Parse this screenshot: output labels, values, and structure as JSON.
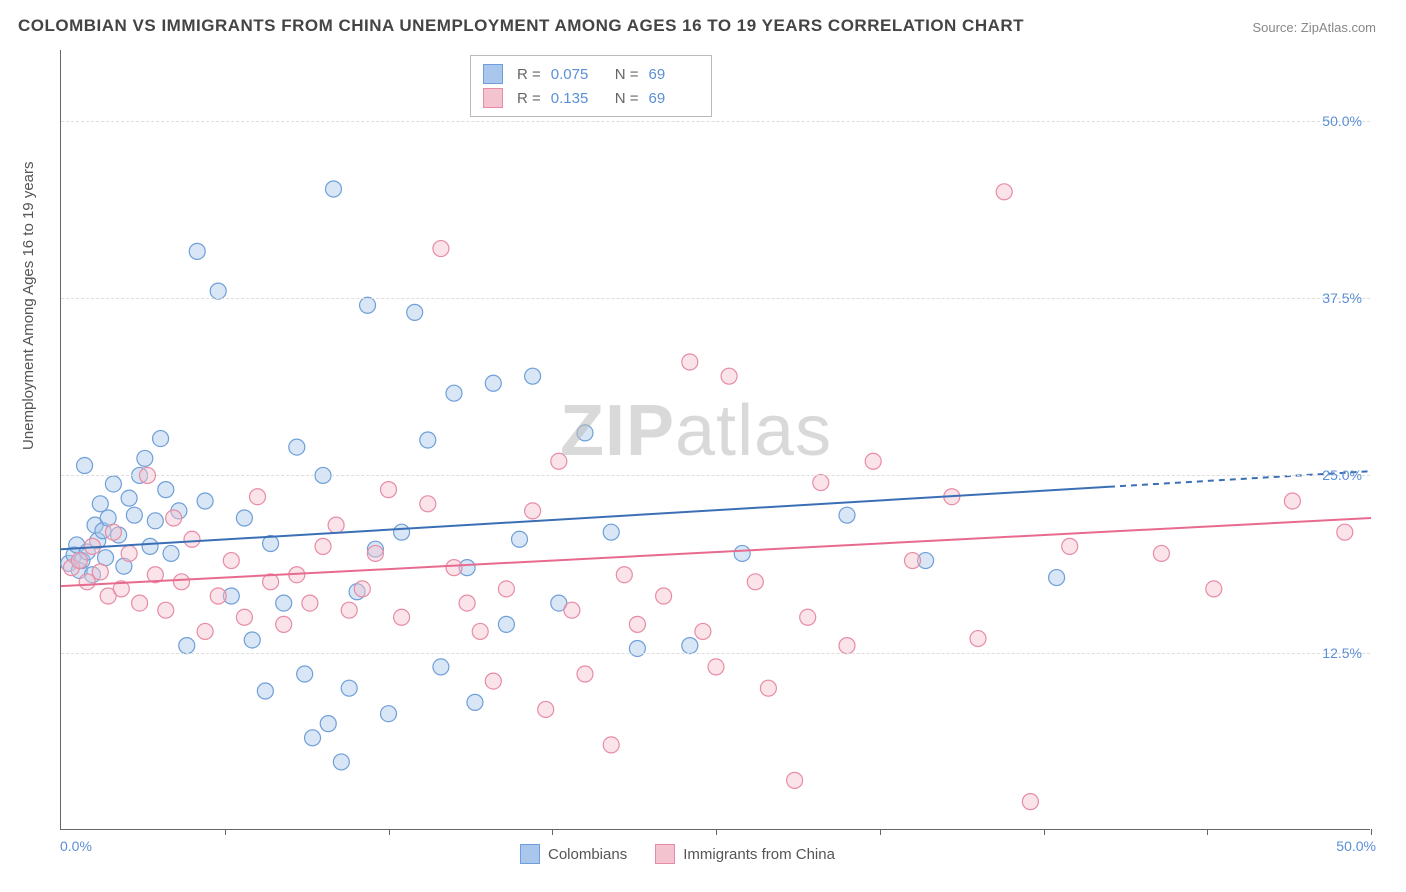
{
  "title": "COLOMBIAN VS IMMIGRANTS FROM CHINA UNEMPLOYMENT AMONG AGES 16 TO 19 YEARS CORRELATION CHART",
  "source": "Source: ZipAtlas.com",
  "ylabel": "Unemployment Among Ages 16 to 19 years",
  "watermark_a": "ZIP",
  "watermark_b": "atlas",
  "chart": {
    "type": "scatter",
    "xlim": [
      0,
      50
    ],
    "ylim": [
      0,
      55
    ],
    "ytick_positions": [
      12.5,
      25.0,
      37.5,
      50.0
    ],
    "ytick_labels": [
      "12.5%",
      "25.0%",
      "37.5%",
      "50.0%"
    ],
    "xtick_positions": [
      6.25,
      12.5,
      18.75,
      25.0,
      31.25,
      37.5,
      43.75,
      50.0
    ],
    "x_origin_label": "0.0%",
    "x_max_label": "50.0%",
    "background_color": "#ffffff",
    "grid_color": "#dddddd",
    "marker_radius": 8,
    "series": [
      {
        "name": "Colombians",
        "color_fill": "#a9c7ec",
        "color_stroke": "#6f9fd8",
        "R": "0.075",
        "N": "69",
        "trend": {
          "x1": 0,
          "y1": 19.8,
          "x2": 40,
          "y2": 24.2,
          "x2_ext": 50,
          "y2_ext": 25.3,
          "color": "#3b6fb5",
          "width": 2
        },
        "points": [
          [
            0.3,
            18.8
          ],
          [
            0.5,
            19.4
          ],
          [
            0.6,
            20.1
          ],
          [
            0.7,
            18.3
          ],
          [
            0.8,
            19.0
          ],
          [
            0.9,
            25.7
          ],
          [
            1.0,
            19.6
          ],
          [
            1.2,
            18.0
          ],
          [
            1.3,
            21.5
          ],
          [
            1.4,
            20.4
          ],
          [
            1.5,
            23.0
          ],
          [
            1.6,
            21.1
          ],
          [
            1.7,
            19.2
          ],
          [
            1.8,
            22.0
          ],
          [
            2.0,
            24.4
          ],
          [
            2.2,
            20.8
          ],
          [
            2.4,
            18.6
          ],
          [
            2.6,
            23.4
          ],
          [
            2.8,
            22.2
          ],
          [
            3.0,
            25.0
          ],
          [
            3.2,
            26.2
          ],
          [
            3.4,
            20.0
          ],
          [
            3.6,
            21.8
          ],
          [
            3.8,
            27.6
          ],
          [
            4.0,
            24.0
          ],
          [
            4.2,
            19.5
          ],
          [
            4.5,
            22.5
          ],
          [
            4.8,
            13.0
          ],
          [
            5.2,
            40.8
          ],
          [
            5.5,
            23.2
          ],
          [
            6.0,
            38.0
          ],
          [
            6.5,
            16.5
          ],
          [
            7.0,
            22.0
          ],
          [
            7.3,
            13.4
          ],
          [
            7.8,
            9.8
          ],
          [
            8.0,
            20.2
          ],
          [
            8.5,
            16.0
          ],
          [
            9.0,
            27.0
          ],
          [
            9.3,
            11.0
          ],
          [
            9.6,
            6.5
          ],
          [
            10.0,
            25.0
          ],
          [
            10.2,
            7.5
          ],
          [
            10.4,
            45.2
          ],
          [
            10.7,
            4.8
          ],
          [
            11.0,
            10.0
          ],
          [
            11.3,
            16.8
          ],
          [
            11.7,
            37.0
          ],
          [
            12.0,
            19.8
          ],
          [
            12.5,
            8.2
          ],
          [
            13.0,
            21.0
          ],
          [
            13.5,
            36.5
          ],
          [
            14.0,
            27.5
          ],
          [
            14.5,
            11.5
          ],
          [
            15.0,
            30.8
          ],
          [
            15.5,
            18.5
          ],
          [
            15.8,
            9.0
          ],
          [
            16.5,
            31.5
          ],
          [
            17.0,
            14.5
          ],
          [
            17.5,
            20.5
          ],
          [
            18.0,
            32.0
          ],
          [
            19.0,
            16.0
          ],
          [
            20.0,
            28.0
          ],
          [
            21.0,
            21.0
          ],
          [
            22.0,
            12.8
          ],
          [
            24.0,
            13.0
          ],
          [
            26.0,
            19.5
          ],
          [
            30.0,
            22.2
          ],
          [
            33.0,
            19.0
          ],
          [
            38.0,
            17.8
          ]
        ]
      },
      {
        "name": "Immigrants from China",
        "color_fill": "#f3c3cf",
        "color_stroke": "#e88ba4",
        "R": "0.135",
        "N": "69",
        "trend": {
          "x1": 0,
          "y1": 17.2,
          "x2": 50,
          "y2": 22.0,
          "color": "#e86a8f",
          "width": 2
        },
        "points": [
          [
            0.4,
            18.5
          ],
          [
            0.7,
            19.0
          ],
          [
            1.0,
            17.5
          ],
          [
            1.2,
            20.0
          ],
          [
            1.5,
            18.2
          ],
          [
            1.8,
            16.5
          ],
          [
            2.0,
            21.0
          ],
          [
            2.3,
            17.0
          ],
          [
            2.6,
            19.5
          ],
          [
            3.0,
            16.0
          ],
          [
            3.3,
            25.0
          ],
          [
            3.6,
            18.0
          ],
          [
            4.0,
            15.5
          ],
          [
            4.3,
            22.0
          ],
          [
            4.6,
            17.5
          ],
          [
            5.0,
            20.5
          ],
          [
            5.5,
            14.0
          ],
          [
            6.0,
            16.5
          ],
          [
            6.5,
            19.0
          ],
          [
            7.0,
            15.0
          ],
          [
            7.5,
            23.5
          ],
          [
            8.0,
            17.5
          ],
          [
            8.5,
            14.5
          ],
          [
            9.0,
            18.0
          ],
          [
            9.5,
            16.0
          ],
          [
            10.0,
            20.0
          ],
          [
            10.5,
            21.5
          ],
          [
            11.0,
            15.5
          ],
          [
            11.5,
            17.0
          ],
          [
            12.0,
            19.5
          ],
          [
            12.5,
            24.0
          ],
          [
            13.0,
            15.0
          ],
          [
            14.0,
            23.0
          ],
          [
            14.5,
            41.0
          ],
          [
            15.0,
            18.5
          ],
          [
            15.5,
            16.0
          ],
          [
            16.0,
            14.0
          ],
          [
            16.5,
            10.5
          ],
          [
            17.0,
            17.0
          ],
          [
            18.0,
            22.5
          ],
          [
            18.5,
            8.5
          ],
          [
            19.0,
            26.0
          ],
          [
            19.5,
            15.5
          ],
          [
            20.0,
            11.0
          ],
          [
            21.0,
            6.0
          ],
          [
            21.5,
            18.0
          ],
          [
            22.0,
            14.5
          ],
          [
            23.0,
            16.5
          ],
          [
            24.0,
            33.0
          ],
          [
            24.5,
            14.0
          ],
          [
            25.0,
            11.5
          ],
          [
            25.5,
            32.0
          ],
          [
            26.5,
            17.5
          ],
          [
            27.0,
            10.0
          ],
          [
            28.0,
            3.5
          ],
          [
            28.5,
            15.0
          ],
          [
            29.0,
            24.5
          ],
          [
            30.0,
            13.0
          ],
          [
            31.0,
            26.0
          ],
          [
            32.5,
            19.0
          ],
          [
            34.0,
            23.5
          ],
          [
            35.0,
            13.5
          ],
          [
            36.0,
            45.0
          ],
          [
            37.0,
            2.0
          ],
          [
            38.5,
            20.0
          ],
          [
            42.0,
            19.5
          ],
          [
            44.0,
            17.0
          ],
          [
            47.0,
            23.2
          ],
          [
            49.0,
            21.0
          ]
        ]
      }
    ],
    "legend_bottom": [
      {
        "label": "Colombians",
        "fill": "#a9c7ec",
        "stroke": "#6f9fd8"
      },
      {
        "label": "Immigrants from China",
        "fill": "#f3c3cf",
        "stroke": "#e88ba4"
      }
    ]
  }
}
